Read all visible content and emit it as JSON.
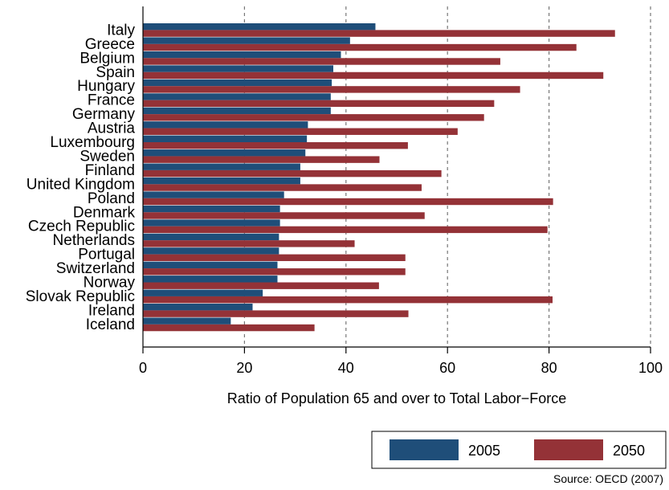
{
  "chart_data": {
    "type": "bar",
    "orientation": "horizontal",
    "categories": [
      "Italy",
      "Greece",
      "Belgium",
      "Spain",
      "Hungary",
      "France",
      "Germany",
      "Austria",
      "Luxembourg",
      "Sweden",
      "Finland",
      "United Kingdom",
      "Poland",
      "Denmark",
      "Czech Republic",
      "Netherlands",
      "Portugal",
      "Switzerland",
      "Norway",
      "Slovak Republic",
      "Ireland",
      "Iceland"
    ],
    "series": [
      {
        "name": "2005",
        "color": "#1f4e79",
        "values": [
          45.8,
          40.8,
          39.0,
          37.5,
          37.2,
          37.0,
          37.0,
          32.5,
          32.3,
          32.0,
          31.0,
          31.0,
          27.8,
          27.0,
          27.0,
          26.8,
          26.8,
          26.5,
          26.5,
          23.6,
          21.6,
          17.3
        ]
      },
      {
        "name": "2050",
        "color": "#943237",
        "values": [
          93.0,
          85.4,
          70.4,
          90.7,
          74.3,
          69.2,
          67.2,
          62.0,
          52.2,
          46.6,
          58.8,
          54.9,
          80.8,
          55.5,
          79.7,
          41.7,
          51.7,
          51.7,
          46.5,
          80.7,
          52.3,
          33.8
        ]
      }
    ],
    "xlabel": "Ratio of Population 65 and over to Total Labor−Force",
    "xlim": [
      0,
      100
    ],
    "xticks": [
      "0",
      "20",
      "40",
      "60",
      "80",
      "100"
    ],
    "grid": "vertical dashed",
    "legend_position": "bottom-right"
  },
  "source_note": "Source: OECD (2007)"
}
